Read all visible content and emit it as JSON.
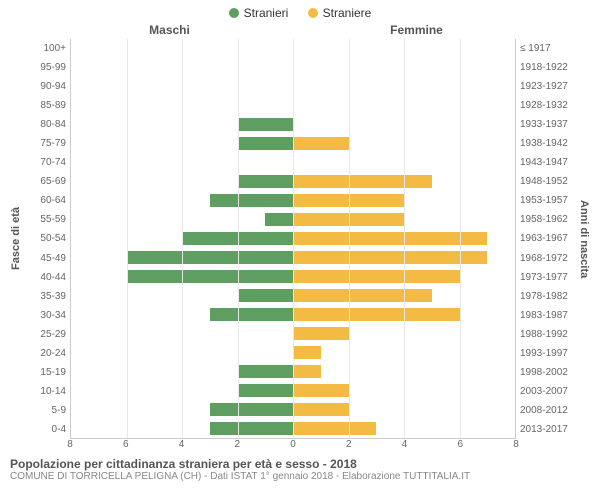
{
  "legend": {
    "male_label": "Stranieri",
    "female_label": "Straniere"
  },
  "header": {
    "male_title": "Maschi",
    "female_title": "Femmine"
  },
  "axes": {
    "y_left_label": "Fasce di età",
    "y_right_label": "Anni di nascita",
    "xmax": 8,
    "xticks": [
      8,
      6,
      4,
      2,
      0,
      2,
      4,
      6,
      8
    ]
  },
  "colors": {
    "male": "#5e9e60",
    "female": "#f3bb43",
    "grid": "#e8e8e8",
    "center_dash": "#777744",
    "background": "#ffffff",
    "text": "#555555",
    "tick_text": "#666666"
  },
  "rows": [
    {
      "age": "100+",
      "birth": "≤ 1917",
      "m": 0,
      "f": 0
    },
    {
      "age": "95-99",
      "birth": "1918-1922",
      "m": 0,
      "f": 0
    },
    {
      "age": "90-94",
      "birth": "1923-1927",
      "m": 0,
      "f": 0
    },
    {
      "age": "85-89",
      "birth": "1928-1932",
      "m": 0,
      "f": 0
    },
    {
      "age": "80-84",
      "birth": "1933-1937",
      "m": 2,
      "f": 0
    },
    {
      "age": "75-79",
      "birth": "1938-1942",
      "m": 2,
      "f": 2
    },
    {
      "age": "70-74",
      "birth": "1943-1947",
      "m": 0,
      "f": 0
    },
    {
      "age": "65-69",
      "birth": "1948-1952",
      "m": 2,
      "f": 5
    },
    {
      "age": "60-64",
      "birth": "1953-1957",
      "m": 3,
      "f": 4
    },
    {
      "age": "55-59",
      "birth": "1958-1962",
      "m": 1,
      "f": 4
    },
    {
      "age": "50-54",
      "birth": "1963-1967",
      "m": 4,
      "f": 7
    },
    {
      "age": "45-49",
      "birth": "1968-1972",
      "m": 6,
      "f": 7
    },
    {
      "age": "40-44",
      "birth": "1973-1977",
      "m": 6,
      "f": 6
    },
    {
      "age": "35-39",
      "birth": "1978-1982",
      "m": 2,
      "f": 5
    },
    {
      "age": "30-34",
      "birth": "1983-1987",
      "m": 3,
      "f": 6
    },
    {
      "age": "25-29",
      "birth": "1988-1992",
      "m": 0,
      "f": 2
    },
    {
      "age": "20-24",
      "birth": "1993-1997",
      "m": 0,
      "f": 1
    },
    {
      "age": "15-19",
      "birth": "1998-2002",
      "m": 2,
      "f": 1
    },
    {
      "age": "10-14",
      "birth": "2003-2007",
      "m": 2,
      "f": 2
    },
    {
      "age": "5-9",
      "birth": "2008-2012",
      "m": 3,
      "f": 2
    },
    {
      "age": "0-4",
      "birth": "2013-2017",
      "m": 3,
      "f": 3
    }
  ],
  "footer": {
    "title": "Popolazione per cittadinanza straniera per età e sesso - 2018",
    "subtitle": "COMUNE DI TORRICELLA PELIGNA (CH) - Dati ISTAT 1° gennaio 2018 - Elaborazione TUTTITALIA.IT"
  },
  "typography": {
    "legend_fontsize": 12,
    "title_fontsize": 12,
    "tick_fontsize": 10,
    "footer_title_fontsize": 12,
    "footer_sub_fontsize": 10
  }
}
